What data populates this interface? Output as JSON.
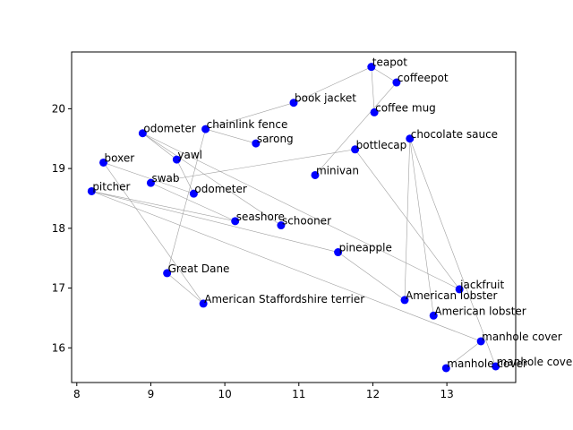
{
  "chart_data": {
    "type": "scatter",
    "title": "",
    "xlabel": "",
    "ylabel": "",
    "xlim": [
      7.93,
      13.93
    ],
    "ylim": [
      15.42,
      20.95
    ],
    "xticks": [
      8,
      9,
      10,
      11,
      12,
      13
    ],
    "yticks": [
      16,
      17,
      18,
      19,
      20
    ],
    "grid": false,
    "marker_color": "#0000ff",
    "edge_color": "#a0a0a0",
    "points": [
      {
        "label": "teapot",
        "x": 11.98,
        "y": 20.7
      },
      {
        "label": "coffeepot",
        "x": 12.32,
        "y": 20.44
      },
      {
        "label": "book jacket",
        "x": 10.93,
        "y": 20.1
      },
      {
        "label": "coffee mug",
        "x": 12.02,
        "y": 19.94
      },
      {
        "label": "chainlink fence",
        "x": 9.74,
        "y": 19.66
      },
      {
        "label": "odometer",
        "x": 8.89,
        "y": 19.59
      },
      {
        "label": "chocolate sauce",
        "x": 12.5,
        "y": 19.5
      },
      {
        "label": "sarong",
        "x": 10.42,
        "y": 19.42
      },
      {
        "label": "bottlecap",
        "x": 11.76,
        "y": 19.32
      },
      {
        "label": "yawl",
        "x": 9.35,
        "y": 19.15
      },
      {
        "label": "boxer",
        "x": 8.36,
        "y": 19.1
      },
      {
        "label": "minivan",
        "x": 11.22,
        "y": 18.89
      },
      {
        "label": "swab",
        "x": 9.0,
        "y": 18.76
      },
      {
        "label": "pitcher",
        "x": 8.2,
        "y": 18.62
      },
      {
        "label": "odometer",
        "x": 9.58,
        "y": 18.58
      },
      {
        "label": "seashore",
        "x": 10.14,
        "y": 18.12
      },
      {
        "label": "schooner",
        "x": 10.76,
        "y": 18.05
      },
      {
        "label": "pineapple",
        "x": 11.53,
        "y": 17.6
      },
      {
        "label": "Great Dane",
        "x": 9.22,
        "y": 17.25
      },
      {
        "label": "jackfruit",
        "x": 13.17,
        "y": 16.98
      },
      {
        "label": "American lobster",
        "x": 12.43,
        "y": 16.8
      },
      {
        "label": "American Staffordshire terrier",
        "x": 9.71,
        "y": 16.74
      },
      {
        "label": "American lobster",
        "x": 12.82,
        "y": 16.54
      },
      {
        "label": "manhole cover",
        "x": 13.46,
        "y": 16.11
      },
      {
        "label": "manhole cover",
        "x": 13.66,
        "y": 15.69
      },
      {
        "label": "manhole cover",
        "x": 12.99,
        "y": 15.66
      }
    ],
    "edges": [
      [
        0,
        1
      ],
      [
        0,
        2
      ],
      [
        0,
        3
      ],
      [
        1,
        11
      ],
      [
        2,
        4
      ],
      [
        4,
        7
      ],
      [
        4,
        18
      ],
      [
        5,
        9
      ],
      [
        5,
        16
      ],
      [
        5,
        19
      ],
      [
        8,
        12
      ],
      [
        9,
        14
      ],
      [
        10,
        14
      ],
      [
        10,
        21
      ],
      [
        13,
        15
      ],
      [
        13,
        17
      ],
      [
        13,
        23
      ],
      [
        17,
        20
      ],
      [
        18,
        21
      ],
      [
        6,
        20
      ],
      [
        6,
        24
      ],
      [
        6,
        22
      ],
      [
        8,
        19
      ],
      [
        23,
        25
      ],
      [
        12,
        15
      ]
    ]
  }
}
